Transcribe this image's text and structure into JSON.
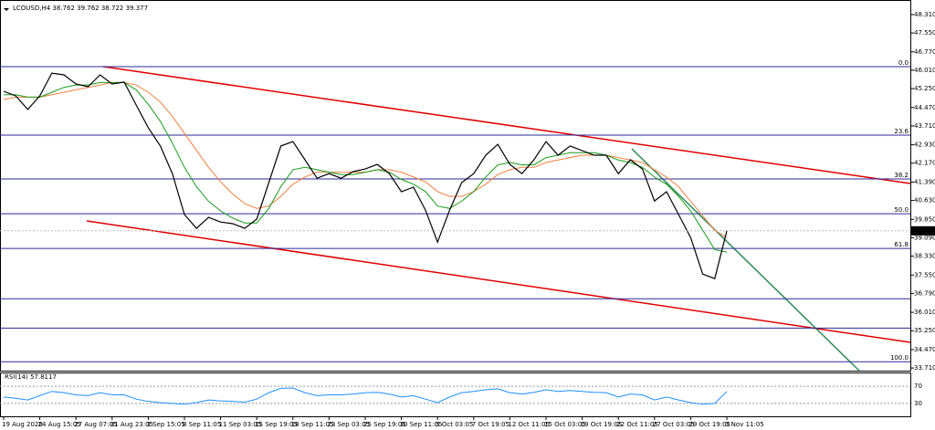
{
  "chart_data": [
    {
      "type": "line",
      "title": "LCOUSD,H4 38.762 39.762 38.722 39.377",
      "categories": [
        "19 Aug 2020",
        null,
        null,
        "24 Aug 15:05",
        null,
        null,
        "27 Aug 07:05",
        null,
        null,
        "31 Aug 23:05",
        null,
        null,
        "3 Sep 15:05",
        null,
        null,
        "8 Sep 11:05",
        null,
        null,
        "11 Sep 03:05",
        null,
        null,
        "15 Sep 19:05",
        null,
        null,
        "18 Sep 11:05",
        null,
        null,
        "23 Sep 03:05",
        null,
        null,
        "25 Sep 19:05",
        null,
        null,
        "30 Sep 11:05",
        null,
        null,
        "5 Oct 03:05",
        null,
        null,
        "7 Oct 19:05",
        null,
        null,
        "12 Oct 11:05",
        null,
        null,
        "15 Oct 03:05",
        null,
        null,
        "19 Oct 19:05",
        null,
        null,
        "22 Oct 11:05",
        null,
        null,
        "27 Oct 03:05",
        null,
        null,
        "29 Oct 19:05",
        null,
        null,
        "3 Nov 11:05"
      ],
      "xlim": [
        0,
        75
      ],
      "series": [
        {
          "color": "#f08040",
          "values": [
            44.8,
            44.9,
            44.9,
            44.9,
            45.0,
            45.1,
            45.2,
            45.3,
            45.4,
            45.5,
            45.5,
            45.4,
            45.1,
            44.7,
            44.1,
            43.4,
            42.7,
            42.0,
            41.4,
            40.9,
            40.5,
            40.3,
            40.4,
            40.8,
            41.3,
            41.6,
            41.8,
            41.8,
            41.8,
            41.8,
            41.8,
            41.9,
            41.9,
            41.8,
            41.6,
            41.4,
            41.0,
            40.8,
            40.8,
            41.0,
            41.3,
            41.7,
            41.9,
            42.0,
            42.0,
            42.2,
            42.3,
            42.4,
            42.5,
            42.5,
            42.5,
            42.4,
            42.3,
            42.2,
            41.9,
            41.6,
            41.2,
            40.6,
            40.0,
            39.4,
            39.1
          ]
        },
        {
          "color": "#1a9a1a",
          "values": [
            45.0,
            45.0,
            44.9,
            44.9,
            45.1,
            45.3,
            45.4,
            45.4,
            45.5,
            45.5,
            45.5,
            45.2,
            44.6,
            43.9,
            43.0,
            42.0,
            41.2,
            40.6,
            40.2,
            39.9,
            39.7,
            39.7,
            40.3,
            41.2,
            41.9,
            42.0,
            41.9,
            41.8,
            41.7,
            41.7,
            41.8,
            41.9,
            41.8,
            41.5,
            41.3,
            41.0,
            40.4,
            40.3,
            40.6,
            41.0,
            41.6,
            42.1,
            42.2,
            42.1,
            42.1,
            42.4,
            42.5,
            42.6,
            42.6,
            42.6,
            42.5,
            42.3,
            42.2,
            42.0,
            41.6,
            41.3,
            40.8,
            40.2,
            39.4,
            38.6,
            38.5
          ]
        },
        {
          "color": "#000000",
          "values": [
            45.14,
            44.95,
            44.39,
            44.95,
            45.89,
            45.82,
            45.44,
            45.33,
            45.82,
            45.44,
            45.52,
            44.57,
            43.63,
            42.88,
            41.74,
            40.05,
            39.48,
            39.93,
            39.74,
            39.67,
            39.48,
            39.86,
            41.37,
            42.88,
            43.06,
            42.31,
            41.55,
            41.74,
            41.55,
            41.82,
            41.93,
            42.12,
            41.74,
            40.99,
            41.18,
            40.23,
            38.91,
            40.23,
            41.37,
            41.74,
            42.5,
            42.95,
            42.12,
            41.74,
            42.31,
            43.06,
            42.5,
            42.88,
            42.69,
            42.5,
            42.5,
            41.74,
            42.31,
            41.93,
            40.61,
            40.99,
            40.05,
            39.1,
            37.59,
            37.4,
            39.377
          ]
        }
      ],
      "ylim": [
        33.6,
        48.76
      ],
      "yticks": [
        {
          "value": 48.31,
          "label": "48.310"
        },
        {
          "value": 47.55,
          "label": "47.550"
        },
        {
          "value": 46.77,
          "label": "46.770"
        },
        {
          "value": 46.01,
          "label": "46.010"
        },
        {
          "value": 45.25,
          "label": "45.250"
        },
        {
          "value": 44.47,
          "label": "44.470"
        },
        {
          "value": 43.71,
          "label": "43.710"
        },
        {
          "value": 42.93,
          "label": "42.930"
        },
        {
          "value": 42.17,
          "label": "42.170"
        },
        {
          "value": 41.39,
          "label": "41.390"
        },
        {
          "value": 40.63,
          "label": "40.630"
        },
        {
          "value": 39.85,
          "label": "39.850"
        },
        {
          "value": 39.09,
          "label": "39.090"
        },
        {
          "value": 38.33,
          "label": "38.330"
        },
        {
          "value": 37.55,
          "label": "37.550"
        },
        {
          "value": 36.79,
          "label": "36.790"
        },
        {
          "value": 36.01,
          "label": "36.010"
        },
        {
          "value": 35.25,
          "label": "35.250"
        },
        {
          "value": 34.47,
          "label": "34.470"
        },
        {
          "value": 33.71,
          "label": "33.710"
        }
      ],
      "fib_levels": [
        {
          "value": 46.16,
          "label": "0.0"
        },
        {
          "value": 43.33,
          "label": "23.6"
        },
        {
          "value": 41.52,
          "label": "38.2"
        },
        {
          "value": 40.08,
          "label": "50.0"
        },
        {
          "value": 38.65,
          "label": "61.8"
        },
        {
          "value": 33.97,
          "label": "100.0"
        }
      ],
      "levels": [
        36.57,
        35.36
      ],
      "level_color": "#2a2a9a",
      "last_price": 39.377
    },
    {
      "type": "line",
      "title": "RSI(14) 57.8117",
      "color": "#1e90ff",
      "values": [
        45,
        42,
        38,
        48,
        58,
        55,
        50,
        48,
        55,
        50,
        50,
        40,
        35,
        32,
        30,
        28,
        32,
        38,
        36,
        35,
        33,
        40,
        55,
        65,
        66,
        55,
        48,
        50,
        50,
        52,
        55,
        56,
        52,
        45,
        48,
        40,
        32,
        45,
        55,
        58,
        62,
        64,
        55,
        52,
        56,
        62,
        58,
        60,
        58,
        56,
        55,
        45,
        52,
        50,
        38,
        45,
        38,
        32,
        28,
        30,
        57.8117
      ],
      "ylim": [
        0,
        100
      ],
      "yticks": [
        70,
        30
      ]
    }
  ]
}
